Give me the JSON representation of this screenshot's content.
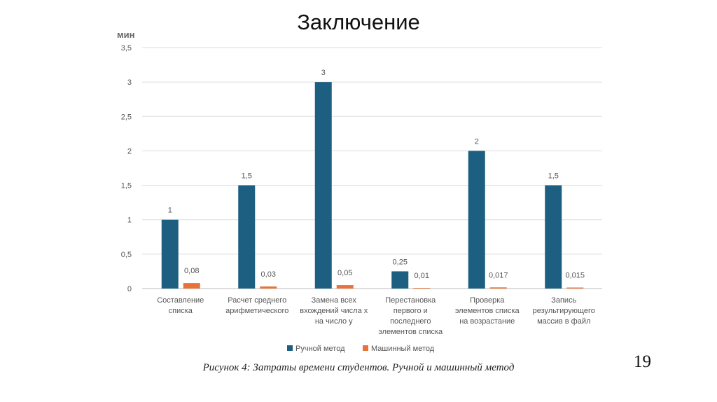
{
  "slide": {
    "title": "Заключение",
    "caption": "Рисунок 4: Затраты времени студентов. Ручной и машинный метод",
    "page_number": "19"
  },
  "chart_data": {
    "type": "bar",
    "title": "",
    "xlabel": "",
    "ylabel": "мин",
    "ylim": [
      0,
      3.5
    ],
    "yticks": [
      "0",
      "0,5",
      "1",
      "1,5",
      "2",
      "2,5",
      "3",
      "3,5"
    ],
    "ytick_values": [
      0,
      0.5,
      1,
      1.5,
      2,
      2.5,
      3,
      3.5
    ],
    "grid": true,
    "legend_position": "bottom",
    "categories": [
      [
        "Составление",
        "списка"
      ],
      [
        "Расчет среднего",
        "арифметического"
      ],
      [
        "Замена всех",
        "вхождений числа x",
        "на число y"
      ],
      [
        "Перестановка",
        "первого и",
        "последнего",
        "элементов списка"
      ],
      [
        "Проверка",
        "элементов списка",
        "на возрастание"
      ],
      [
        "Запись",
        "результирующего",
        "массив в файл"
      ]
    ],
    "series": [
      {
        "name": "Ручной метод",
        "color": "#1c5f80",
        "values": [
          1,
          1.5,
          3,
          0.25,
          2,
          1.5
        ],
        "labels": [
          "1",
          "1,5",
          "3",
          "0,25",
          "2",
          "1,5"
        ]
      },
      {
        "name": "Машинный метод",
        "color": "#e8733a",
        "values": [
          0.08,
          0.03,
          0.05,
          0.01,
          0.017,
          0.015
        ],
        "labels": [
          "0,08",
          "0,03",
          "0,05",
          "0,01",
          "0,017",
          "0,015"
        ]
      }
    ]
  }
}
